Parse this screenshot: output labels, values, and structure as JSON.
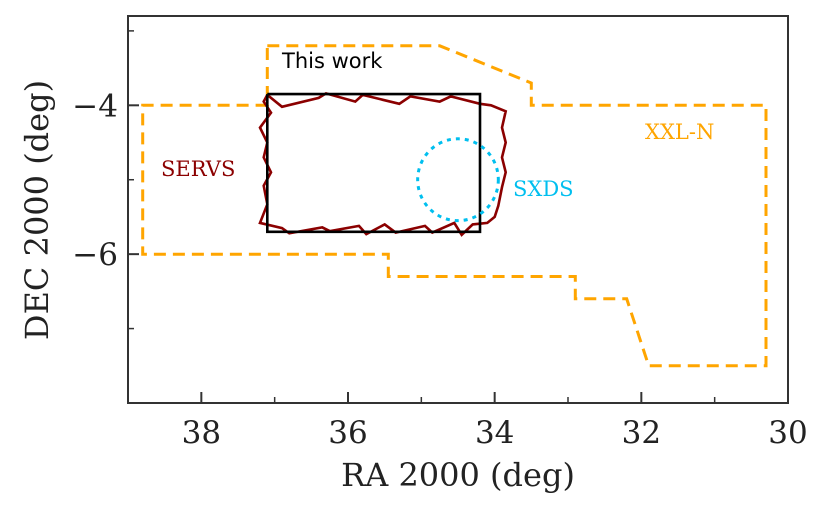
{
  "chart_data": {
    "type": "line",
    "xlabel": "RA 2000 (deg)",
    "ylabel": "DEC 2000 (deg)",
    "xlim": [
      39,
      30
    ],
    "ylim": [
      -8.0,
      -2.8
    ],
    "x_major_ticks": [
      38,
      36,
      34,
      32,
      30
    ],
    "x_tick_labels": [
      "38",
      "36",
      "34",
      "32",
      "30"
    ],
    "x_minor_ticks": [
      37,
      35,
      33,
      31
    ],
    "y_major_ticks": [
      -4,
      -6
    ],
    "y_tick_labels": [
      "−4",
      "−6"
    ],
    "y_minor_ticks": [
      -3,
      -5,
      -7
    ],
    "grid": false,
    "series": [
      {
        "name": "XXL-N",
        "label": "XXL-N",
        "color": "#FFA500",
        "style": "dashed",
        "x": [
          37.1,
          34.75,
          33.5,
          33.5,
          30.3,
          30.3,
          31.9,
          32.2,
          32.9,
          32.9,
          35.45,
          35.45,
          38.8,
          38.8,
          37.1,
          37.1
        ],
        "y": [
          -3.2,
          -3.2,
          -3.7,
          -4.0,
          -4.0,
          -7.5,
          -7.5,
          -6.6,
          -6.6,
          -6.3,
          -6.3,
          -6.0,
          -6.0,
          -4.0,
          -4.0,
          -3.2
        ]
      },
      {
        "name": "SERVS",
        "label": "SERVS",
        "color": "#8B0000",
        "style": "solid",
        "x": [
          37.1,
          36.9,
          36.4,
          36.3,
          35.9,
          35.8,
          35.3,
          35.15,
          34.75,
          34.6,
          34.2,
          34.05,
          33.85,
          33.9,
          33.85,
          33.9,
          33.85,
          33.9,
          33.95,
          34.0,
          34.1,
          34.3,
          34.45,
          34.55,
          34.85,
          34.95,
          35.35,
          35.5,
          35.75,
          35.85,
          36.25,
          36.35,
          36.8,
          36.9,
          37.2,
          37.1,
          37.15,
          37.05,
          37.15,
          37.1,
          37.2,
          37.05,
          37.15,
          37.1
        ],
        "y": [
          -3.86,
          -4.02,
          -3.9,
          -3.84,
          -3.95,
          -3.86,
          -3.98,
          -3.88,
          -3.95,
          -3.88,
          -3.98,
          -4.0,
          -4.08,
          -4.3,
          -4.5,
          -4.7,
          -4.9,
          -5.1,
          -5.35,
          -5.5,
          -5.58,
          -5.6,
          -5.74,
          -5.58,
          -5.71,
          -5.62,
          -5.71,
          -5.6,
          -5.73,
          -5.62,
          -5.69,
          -5.64,
          -5.72,
          -5.65,
          -5.58,
          -5.33,
          -5.08,
          -4.9,
          -4.7,
          -4.5,
          -4.3,
          -4.1,
          -3.95,
          -3.86
        ]
      },
      {
        "name": "This work",
        "label": "This work",
        "color": "#000000",
        "style": "solid",
        "x": [
          37.1,
          34.2,
          34.2,
          37.1,
          37.1
        ],
        "y": [
          -3.85,
          -3.85,
          -5.7,
          -5.7,
          -3.85
        ]
      },
      {
        "name": "SXDS",
        "label": "SXDS",
        "color": "#00BFEF",
        "style": "dotted",
        "ellipse": {
          "center": [
            34.5,
            -5.0
          ],
          "radius_ra_deg": 0.55,
          "radius_dec_deg": 0.55
        }
      }
    ],
    "annotations": [
      {
        "text": "This work",
        "x": 36.9,
        "y": -3.5,
        "color": "#000000",
        "series": "This work"
      },
      {
        "text": "SERVS",
        "x": 38.55,
        "y": -4.95,
        "color": "#8B0000",
        "series": "SERVS"
      },
      {
        "text": "SXDS",
        "x": 33.75,
        "y": -5.22,
        "color": "#00BFEF",
        "series": "SXDS"
      },
      {
        "text": "XXL-N",
        "x": 31.95,
        "y": -4.45,
        "color": "#FFA500",
        "series": "XXL-N"
      }
    ]
  }
}
